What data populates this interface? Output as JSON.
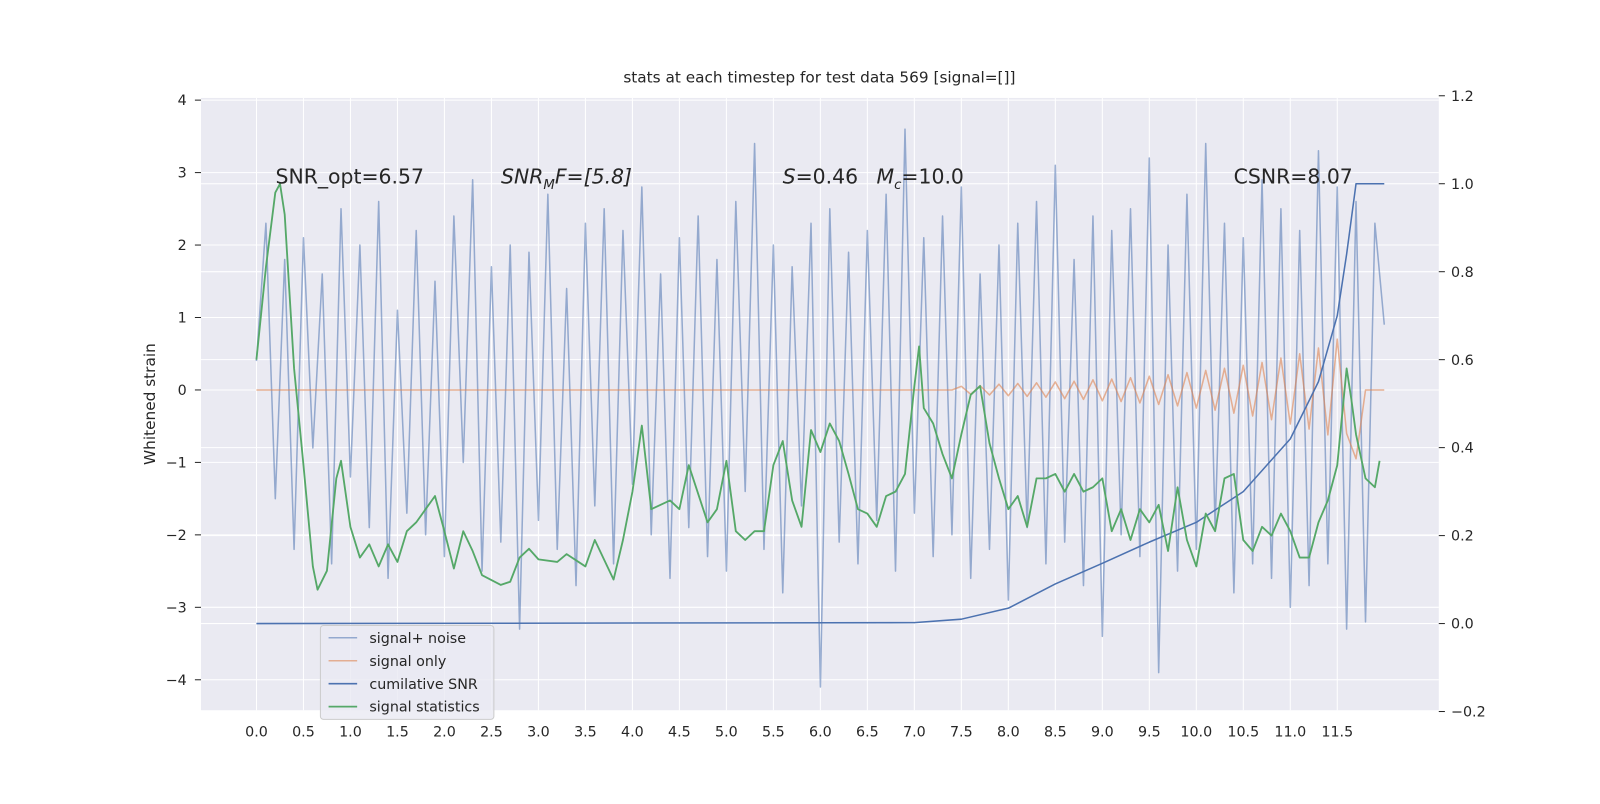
{
  "chart_data": {
    "type": "line",
    "title": "stats at each timestep for test data 569 [signal=[]]",
    "ylabel": "Whitened strain",
    "grid": true,
    "legend": "lower left",
    "xlim": [
      -0.59,
      12.58
    ],
    "ylim": [
      -4.42,
      4.03
    ],
    "y2lim": [
      -0.197,
      1.195
    ],
    "xticks": [
      {
        "value": 0,
        "label": "0.0"
      },
      0.5,
      {
        "value": 1,
        "label": "1.0"
      },
      1.5,
      {
        "value": 2,
        "label": "2.0"
      },
      2.5,
      {
        "value": 3,
        "label": "3.0"
      },
      3.5,
      {
        "value": 4,
        "label": "4.0"
      },
      4.5,
      {
        "value": 5,
        "label": "5.0"
      },
      5.5,
      {
        "value": 6,
        "label": "6.0"
      },
      6.5,
      {
        "value": 7,
        "label": "7.0"
      },
      7.5,
      {
        "value": 8,
        "label": "8.0"
      },
      8.5,
      {
        "value": 9,
        "label": "9.0"
      },
      9.5,
      {
        "value": 10,
        "label": "10.0"
      },
      10.5,
      {
        "value": 11,
        "label": "11.0"
      },
      11.5
    ],
    "yticks": [
      {
        "value": -4,
        "label": "−4"
      },
      {
        "value": -3,
        "label": "−3"
      },
      {
        "value": -2,
        "label": "−2"
      },
      {
        "value": -1,
        "label": "−1"
      },
      0,
      1,
      2,
      3,
      4
    ],
    "y2ticks": [
      {
        "value": -0.2,
        "label": "−0.2"
      },
      {
        "value": 0,
        "label": "0.0"
      },
      0.2,
      0.4,
      0.6,
      0.8,
      {
        "value": 1,
        "label": "1.0"
      },
      1.2
    ],
    "x": [
      0,
      0.1,
      0.2,
      0.3,
      0.4,
      0.5,
      0.6,
      0.7,
      0.8,
      0.9,
      1,
      1.1,
      1.2,
      1.3,
      1.4,
      1.5,
      1.6,
      1.7,
      1.8,
      1.9,
      2,
      2.1,
      2.2,
      2.3,
      2.4,
      2.5,
      2.6,
      2.7,
      2.8,
      2.9,
      3,
      3.1,
      3.2,
      3.3,
      3.4,
      3.5,
      3.6,
      3.7,
      3.8,
      3.9,
      4,
      4.1,
      4.2,
      4.3,
      4.4,
      4.5,
      4.6,
      4.7,
      4.8,
      4.9,
      5,
      5.1,
      5.2,
      5.3,
      5.4,
      5.5,
      5.6,
      5.7,
      5.8,
      5.9,
      6,
      6.1,
      6.2,
      6.3,
      6.4,
      6.5,
      6.6,
      6.7,
      6.8,
      6.9,
      7,
      7.1,
      7.2,
      7.3,
      7.4,
      7.5,
      7.6,
      7.7,
      7.8,
      7.9,
      8,
      8.1,
      8.2,
      8.3,
      8.4,
      8.5,
      8.6,
      8.7,
      8.8,
      8.9,
      9,
      9.1,
      9.2,
      9.3,
      9.4,
      9.5,
      9.6,
      9.7,
      9.8,
      9.9,
      10,
      10.1,
      10.2,
      10.3,
      10.4,
      10.5,
      10.6,
      10.7,
      10.8,
      10.9,
      11,
      11.1,
      11.2,
      11.3,
      11.4,
      11.5,
      11.6,
      11.7,
      11.8,
      11.9,
      12
    ],
    "series": [
      {
        "name": "signal+ noise",
        "color": "#4c72b0",
        "values": [
          0.4,
          2.3,
          -1.5,
          1.8,
          -2.2,
          2.1,
          -0.8,
          1.6,
          -2.4,
          2.5,
          -1.2,
          2.0,
          -1.9,
          2.6,
          -2.6,
          1.1,
          -1.7,
          2.2,
          -2.0,
          1.5,
          -2.3,
          2.4,
          -1.0,
          2.9,
          -2.5,
          1.7,
          -2.1,
          2.0,
          -3.3,
          1.9,
          -1.8,
          2.7,
          -2.2,
          1.4,
          -2.7,
          2.3,
          -1.6,
          2.5,
          -2.4,
          2.2,
          -1.3,
          2.8,
          -2.0,
          1.6,
          -2.6,
          2.1,
          -1.9,
          2.4,
          -2.3,
          1.8,
          -2.5,
          2.6,
          -1.4,
          3.4,
          -2.2,
          2.0,
          -2.8,
          1.7,
          -1.6,
          2.3,
          -4.1,
          2.5,
          -2.1,
          1.9,
          -2.4,
          2.2,
          -1.8,
          2.7,
          -2.5,
          3.6,
          -1.7,
          2.1,
          -2.3,
          2.4,
          -2.0,
          2.8,
          -2.6,
          1.6,
          -2.2,
          2.0,
          -2.9,
          2.3,
          -1.9,
          2.6,
          -2.4,
          3.1,
          -2.1,
          1.8,
          -2.7,
          2.4,
          -3.4,
          2.2,
          -2.0,
          2.5,
          -2.3,
          3.2,
          -3.9,
          2.0,
          -2.5,
          2.7,
          -2.2,
          3.4,
          -1.9,
          2.3,
          -2.8,
          2.1,
          -2.4,
          2.9,
          -2.6,
          2.5,
          -3.0,
          2.2,
          -2.7,
          3.3,
          -2.4,
          2.8,
          -3.3,
          2.6,
          -3.2,
          2.3,
          0.9
        ]
      },
      {
        "name": "signal only",
        "color": "#dd8452",
        "values": [
          0,
          0,
          0,
          0,
          0,
          0,
          0,
          0,
          0,
          0,
          0,
          0,
          0,
          0,
          0,
          0,
          0,
          0,
          0,
          0,
          0,
          0,
          0,
          0,
          0,
          0,
          0,
          0,
          0,
          0,
          0,
          0,
          0,
          0,
          0,
          0,
          0,
          0,
          0,
          0,
          0,
          0,
          0,
          0,
          0,
          0,
          0,
          0,
          0,
          0,
          0,
          0,
          0,
          0,
          0,
          0,
          0,
          0,
          0,
          0,
          0,
          0,
          0,
          0,
          0,
          0,
          0,
          0,
          0,
          0,
          0,
          0,
          0,
          0,
          0,
          0.05,
          -0.06,
          0.06,
          -0.07,
          0.08,
          -0.08,
          0.09,
          -0.09,
          0.1,
          -0.1,
          0.11,
          -0.12,
          0.12,
          -0.13,
          0.14,
          -0.15,
          0.15,
          -0.16,
          0.17,
          -0.18,
          0.19,
          -0.2,
          0.21,
          -0.22,
          0.24,
          -0.25,
          0.27,
          -0.28,
          0.3,
          -0.32,
          0.34,
          -0.36,
          0.38,
          -0.41,
          0.44,
          -0.47,
          0.5,
          -0.54,
          0.58,
          -0.62,
          0.7,
          -0.6,
          -0.95,
          0,
          0,
          0
        ]
      },
      {
        "name": "cumilative SNR",
        "color": "#4c72b0",
        "axis": "y2",
        "x": [
          0,
          7.0,
          7.5,
          8.0,
          8.5,
          9.0,
          9.5,
          10.0,
          10.5,
          11.0,
          11.3,
          11.5,
          11.6,
          11.7,
          12.0
        ],
        "values": [
          0,
          0.002,
          0.01,
          0.035,
          0.09,
          0.137,
          0.185,
          0.23,
          0.3,
          0.42,
          0.55,
          0.7,
          0.84,
          1.0,
          1.0
        ]
      },
      {
        "name": "signal statistics",
        "color": "#55a868",
        "axis": "y2",
        "x": [
          0,
          0.1,
          0.2,
          0.25,
          0.3,
          0.4,
          0.5,
          0.6,
          0.65,
          0.75,
          0.85,
          0.9,
          1.0,
          1.1,
          1.2,
          1.3,
          1.4,
          1.5,
          1.6,
          1.7,
          1.9,
          2.0,
          2.1,
          2.2,
          2.3,
          2.4,
          2.6,
          2.7,
          2.8,
          2.9,
          3.0,
          3.2,
          3.3,
          3.5,
          3.6,
          3.8,
          3.9,
          4.0,
          4.1,
          4.2,
          4.4,
          4.5,
          4.6,
          4.8,
          4.9,
          5.0,
          5.1,
          5.2,
          5.3,
          5.4,
          5.5,
          5.6,
          5.7,
          5.8,
          5.9,
          6.0,
          6.1,
          6.2,
          6.3,
          6.4,
          6.5,
          6.6,
          6.7,
          6.8,
          6.9,
          7.0,
          7.05,
          7.1,
          7.2,
          7.3,
          7.4,
          7.5,
          7.6,
          7.7,
          7.8,
          7.9,
          8.0,
          8.1,
          8.2,
          8.3,
          8.4,
          8.5,
          8.6,
          8.7,
          8.8,
          8.9,
          9.0,
          9.1,
          9.2,
          9.3,
          9.4,
          9.5,
          9.6,
          9.7,
          9.8,
          9.9,
          10.0,
          10.1,
          10.2,
          10.3,
          10.4,
          10.5,
          10.6,
          10.7,
          10.8,
          10.9,
          11.0,
          11.1,
          11.2,
          11.3,
          11.4,
          11.5,
          11.6,
          11.65,
          11.7,
          11.8,
          11.9,
          11.95
        ],
        "values": [
          0.6,
          0.81,
          0.98,
          1.0,
          0.93,
          0.58,
          0.36,
          0.13,
          0.077,
          0.12,
          0.33,
          0.37,
          0.22,
          0.15,
          0.18,
          0.13,
          0.18,
          0.14,
          0.21,
          0.23,
          0.29,
          0.21,
          0.125,
          0.21,
          0.165,
          0.11,
          0.088,
          0.095,
          0.15,
          0.17,
          0.146,
          0.14,
          0.158,
          0.13,
          0.19,
          0.1,
          0.19,
          0.3,
          0.45,
          0.26,
          0.28,
          0.26,
          0.36,
          0.23,
          0.26,
          0.37,
          0.21,
          0.19,
          0.21,
          0.21,
          0.36,
          0.415,
          0.28,
          0.22,
          0.44,
          0.39,
          0.455,
          0.415,
          0.34,
          0.26,
          0.25,
          0.22,
          0.29,
          0.3,
          0.34,
          0.54,
          0.63,
          0.49,
          0.455,
          0.385,
          0.33,
          0.43,
          0.52,
          0.54,
          0.41,
          0.33,
          0.26,
          0.29,
          0.22,
          0.33,
          0.33,
          0.34,
          0.3,
          0.34,
          0.3,
          0.31,
          0.33,
          0.21,
          0.26,
          0.19,
          0.26,
          0.23,
          0.27,
          0.165,
          0.31,
          0.19,
          0.13,
          0.25,
          0.21,
          0.33,
          0.34,
          0.19,
          0.165,
          0.22,
          0.2,
          0.25,
          0.21,
          0.15,
          0.15,
          0.23,
          0.28,
          0.36,
          0.58,
          0.51,
          0.43,
          0.33,
          0.31,
          0.37
        ]
      }
    ],
    "annotations": [
      {
        "parts": [
          "SNR_opt=6.57"
        ]
      },
      {
        "parts": [
          "SNR",
          "M",
          "F=[5.8]"
        ]
      },
      {
        "parts": [
          "S",
          "=0.46"
        ]
      },
      {
        "parts": [
          "M",
          "c",
          "=10.0"
        ]
      },
      {
        "parts": [
          "CSNR=8.07"
        ]
      }
    ]
  }
}
